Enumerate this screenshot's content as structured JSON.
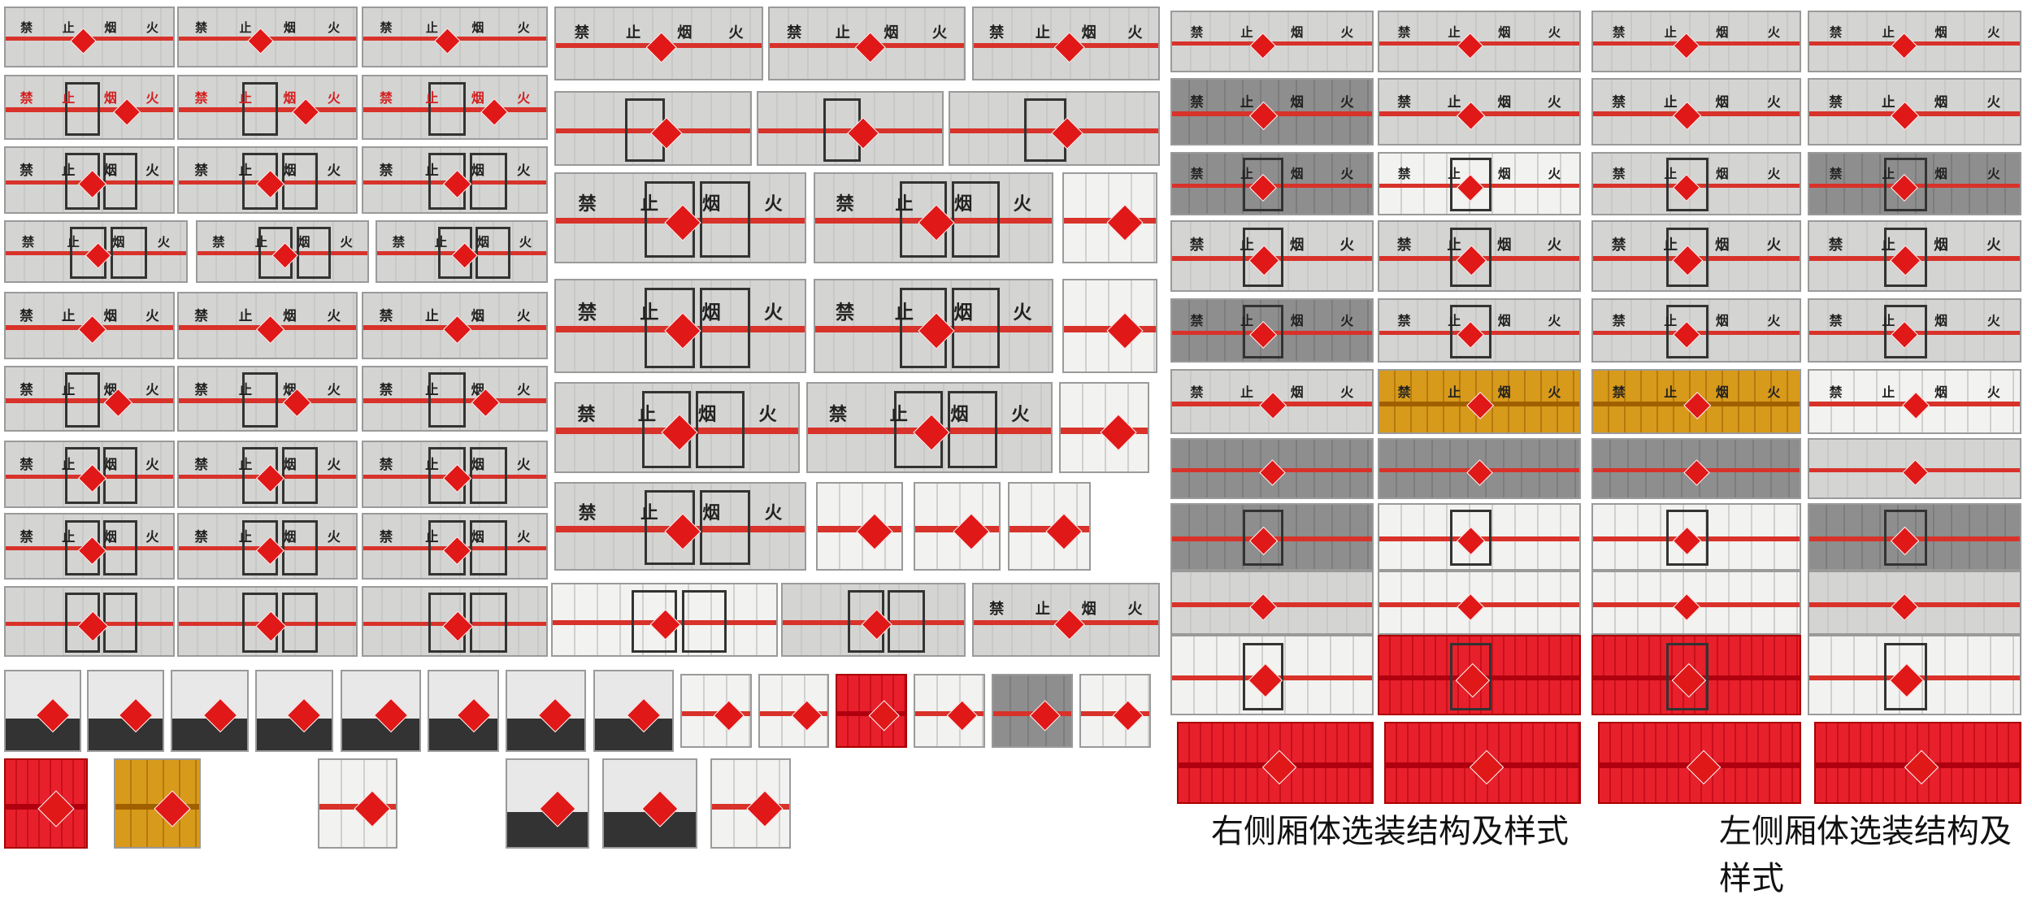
{
  "panel_sign": [
    "禁",
    "止",
    "烟",
    "火"
  ],
  "captions": {
    "right_side": "右侧厢体选装结构及样式",
    "left_side": "左侧厢体选装结构及样式"
  },
  "colors": {
    "stripe": "#d8322a",
    "hazard_diamond": "#e01818",
    "box_gray": "#d4d4d2",
    "box_red": "#e8202c",
    "box_orange": "#d89a1a"
  }
}
